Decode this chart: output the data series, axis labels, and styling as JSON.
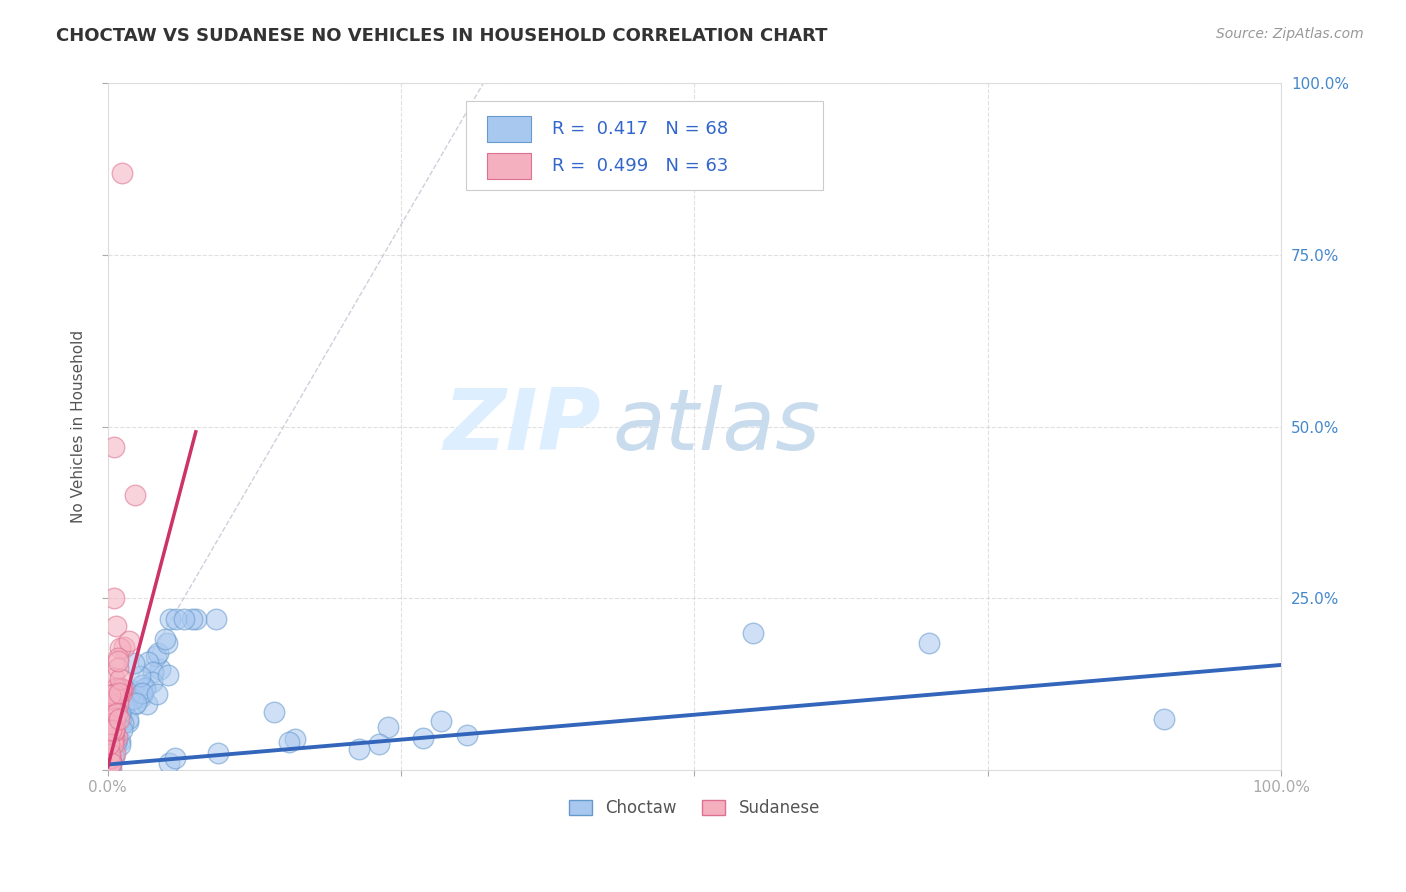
{
  "title": "CHOCTAW VS SUDANESE NO VEHICLES IN HOUSEHOLD CORRELATION CHART",
  "source": "Source: ZipAtlas.com",
  "ylabel": "No Vehicles in Household",
  "xlim": [
    0,
    1
  ],
  "ylim": [
    0,
    1
  ],
  "choctaw_color_fill": "#a8c8f0",
  "choctaw_color_edge": "#6699cc",
  "sudanese_color_fill": "#f5b0c0",
  "sudanese_color_edge": "#dd7090",
  "choctaw_R": 0.417,
  "choctaw_N": 68,
  "sudanese_R": 0.499,
  "sudanese_N": 63,
  "choctaw_line_color": "#3366bb",
  "sudanese_line_color": "#cc3366",
  "legend_label_choctaw": "Choctaw",
  "legend_label_sudanese": "Sudanese",
  "background_color": "#ffffff",
  "grid_color": "#cccccc",
  "watermark_zip_color": "#ddeeff",
  "watermark_atlas_color": "#c8dcee",
  "title_color": "#333333",
  "source_color": "#999999",
  "ylabel_color": "#555555",
  "ytick_color": "#4488cc",
  "xtick_color": "#777777"
}
